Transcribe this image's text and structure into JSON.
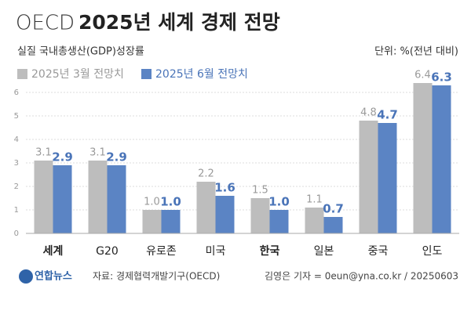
{
  "chart_data": {
    "type": "bar",
    "title_org": "OECD",
    "title": "2025년 세계 경제 전망",
    "subtitle": "실질 국내총생산(GDP)성장률",
    "unit": "단위: %(전년 대비)",
    "categories": [
      "세계",
      "G20",
      "유로존",
      "미국",
      "한국",
      "일본",
      "중국",
      "인도"
    ],
    "bold_categories": [
      0,
      4
    ],
    "series": [
      {
        "name": "2025년 3월 전망치",
        "color": "#bdbdbd",
        "label_color": "#9a9a9a",
        "values": [
          3.1,
          3.1,
          1.0,
          2.2,
          1.5,
          1.1,
          4.8,
          6.4
        ],
        "value_labels": [
          "3.1",
          "3.1",
          "1.0",
          "2.2",
          "1.5",
          "1.1",
          "4.8",
          "6.4"
        ]
      },
      {
        "name": "2025년 6월 전망치",
        "color": "#5b84c4",
        "label_color": "#4a74b8",
        "values": [
          2.9,
          2.9,
          1.0,
          1.6,
          1.0,
          0.7,
          4.7,
          6.3
        ],
        "value_labels": [
          "2.9",
          "2.9",
          "1.0",
          "1.6",
          "1.0",
          "0.7",
          "4.7",
          "6.3"
        ]
      }
    ],
    "ylim": [
      0,
      6.6
    ],
    "yticks": [
      0,
      1,
      2,
      3,
      4,
      5,
      6
    ],
    "grid": true,
    "logo": "연합뉴스",
    "source": "자료: 경제협력개발기구(OECD)",
    "credit": "김영은 기자 = 0eun@yna.co.kr / 20250603"
  }
}
